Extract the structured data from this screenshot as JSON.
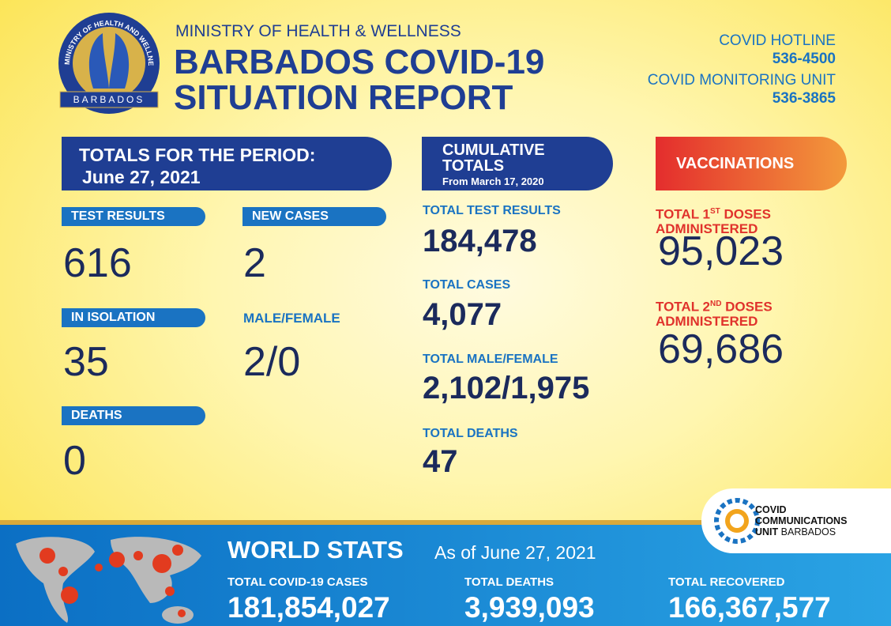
{
  "logo": {
    "ring": "MINISTRY OF HEALTH AND WELLNESS",
    "banner": "BARBADOS"
  },
  "header": {
    "ministry": "MINISTRY OF HEALTH & WELLNESS",
    "title_line1": "BARBADOS COVID-19",
    "title_line2": "SITUATION REPORT"
  },
  "contacts": [
    {
      "label": "COVID HOTLINE",
      "number": "536-4500"
    },
    {
      "label": "COVID MONITORING UNIT",
      "number": "536-3865"
    }
  ],
  "period": {
    "heading": "TOTALS FOR THE PERIOD:",
    "date": "June 27, 2021",
    "stats": [
      {
        "label": "TEST RESULTS",
        "value": "616"
      },
      {
        "label": "NEW CASES",
        "value": "2"
      },
      {
        "label": "IN ISOLATION",
        "value": "35"
      },
      {
        "label": "MALE/FEMALE",
        "value": "2/0"
      },
      {
        "label": "DEATHS",
        "value": "0"
      }
    ]
  },
  "cumulative": {
    "heading_line1": "CUMULATIVE",
    "heading_line2": "TOTALS",
    "since": "From March 17, 2020",
    "stats": [
      {
        "label": "TOTAL TEST RESULTS",
        "value": "184,478"
      },
      {
        "label": "TOTAL CASES",
        "value": "4,077"
      },
      {
        "label": "TOTAL MALE/FEMALE",
        "value": "2,102/1,975"
      },
      {
        "label": "TOTAL DEATHS",
        "value": "47"
      }
    ]
  },
  "vaccinations": {
    "heading": "VACCINATIONS",
    "stats": [
      {
        "label_pre": "TOTAL 1",
        "label_sup": "ST",
        "label_post": " DOSES",
        "label_line2": "ADMINISTERED",
        "value": "95,023"
      },
      {
        "label_pre": "TOTAL 2",
        "label_sup": "ND",
        "label_post": " DOSES",
        "label_line2": "ADMINISTERED",
        "value": "69,686"
      }
    ]
  },
  "ccu": {
    "line1": "COVID",
    "line2": "COMMUNICATIONS",
    "line3_bold": "UNIT",
    "line3_rest": " BARBADOS"
  },
  "world": {
    "heading": "WORLD STATS",
    "as_of": "As of June 27, 2021",
    "stats": [
      {
        "label": "TOTAL COVID-19 CASES",
        "value": "181,854,027"
      },
      {
        "label": "TOTAL DEATHS",
        "value": "3,939,093"
      },
      {
        "label": "TOTAL RECOVERED",
        "value": "166,367,577"
      }
    ]
  }
}
